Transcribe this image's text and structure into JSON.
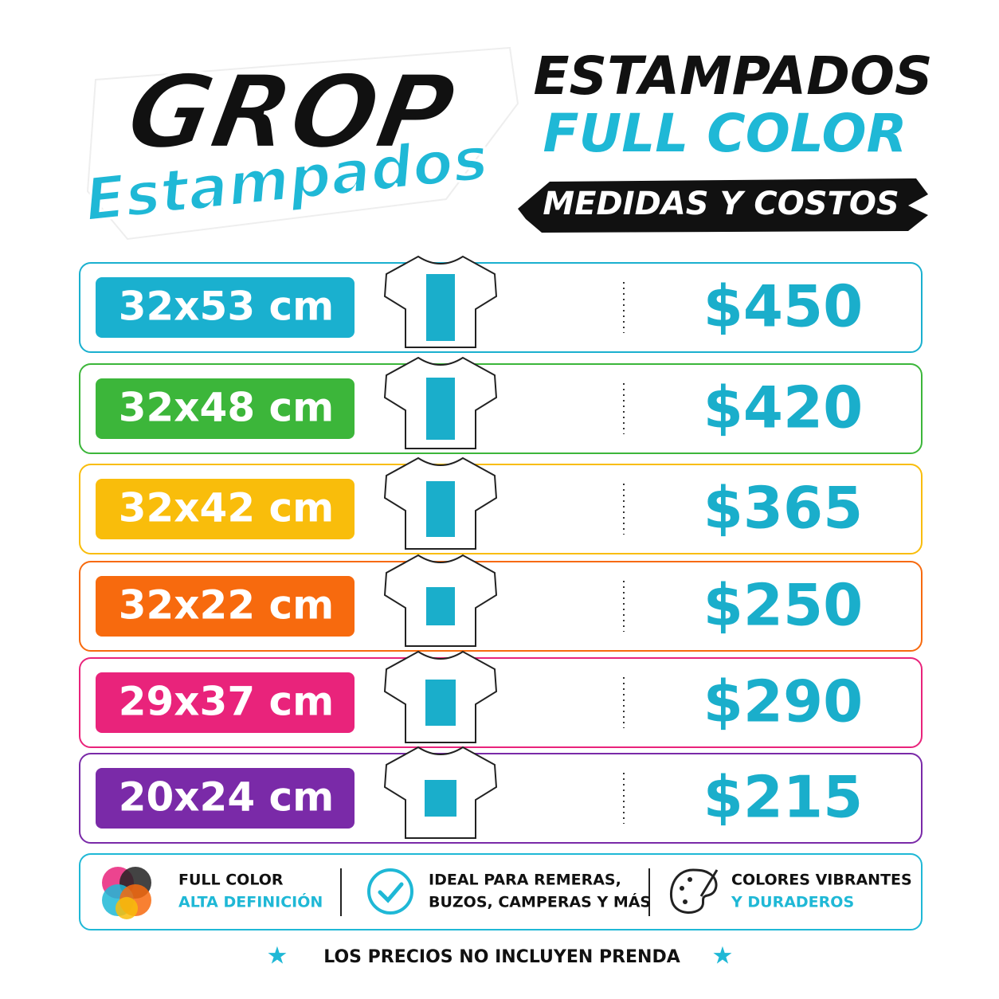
{
  "logo": {
    "name": "GROP",
    "subtitle": "Estampados"
  },
  "header": {
    "title": "ESTAMPADOS",
    "subtitle": "FULL COLOR",
    "banner": "MEDIDAS Y COSTOS"
  },
  "rows": [
    {
      "size": "32x53 cm",
      "price": "$450",
      "color": "#1ab0cf"
    },
    {
      "size": "32x48 cm",
      "price": "$420",
      "color": "#3cb63a"
    },
    {
      "size": "32x42 cm",
      "price": "$365",
      "color": "#f9bd0b"
    },
    {
      "size": "32x22 cm",
      "price": "$250",
      "color": "#f76a0e"
    },
    {
      "size": "29x37 cm",
      "price": "$290",
      "color": "#e9237b"
    },
    {
      "size": "20x24 cm",
      "price": "$215",
      "color": "#7a2aa8"
    }
  ],
  "features": [
    {
      "lines": [
        "FULL COLOR",
        "ALTA DEFINICIÓN"
      ]
    },
    {
      "lines": [
        "IDEAL PARA REMERAS,",
        "BUZOS, CAMPERAS Y MÁS"
      ]
    },
    {
      "lines": [
        "COLORES VIBRANTES",
        "Y DURADEROS"
      ]
    }
  ],
  "footer": "LOS PRECIOS NO INCLUYEN PRENDA"
}
